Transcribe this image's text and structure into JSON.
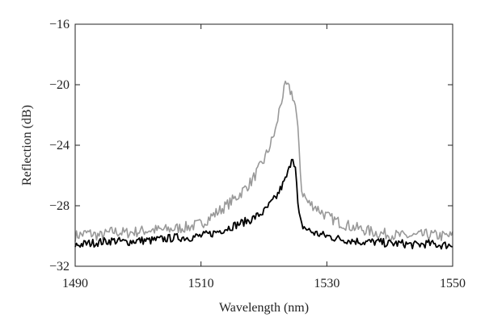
{
  "chart_data": {
    "type": "line",
    "title": "",
    "xlabel": "Wavelength (nm)",
    "ylabel": "Reflection (dB)",
    "xlim": [
      1490,
      1550
    ],
    "ylim": [
      -32,
      -16
    ],
    "xticks": [
      1490,
      1510,
      1530,
      1550
    ],
    "xtick_labels": [
      "1490",
      "1510",
      "1530",
      "1550"
    ],
    "yticks": [
      -32,
      -28,
      -24,
      -20,
      -16
    ],
    "ytick_labels": [
      "−32",
      "−28",
      "−24",
      "−20",
      "−16"
    ],
    "grid": false,
    "legend": "none",
    "series": [
      {
        "color": "#999999",
        "x": [
          1490,
          1492,
          1494,
          1496,
          1498,
          1500,
          1502,
          1504,
          1506,
          1508,
          1510,
          1512,
          1514,
          1516,
          1518,
          1520,
          1521,
          1522,
          1522.5,
          1523,
          1523.5,
          1524,
          1524.5,
          1525,
          1525.5,
          1526,
          1527,
          1528,
          1530,
          1532,
          1534,
          1536,
          1538,
          1540,
          1542,
          1544,
          1546,
          1548,
          1550
        ],
        "values": [
          -30.0,
          -29.8,
          -30.0,
          -29.7,
          -29.8,
          -29.7,
          -29.6,
          -29.6,
          -29.5,
          -29.4,
          -29.2,
          -28.6,
          -28.0,
          -27.3,
          -26.4,
          -25.0,
          -24.0,
          -22.8,
          -21.5,
          -20.7,
          -20.0,
          -20.3,
          -20.6,
          -21.4,
          -23.5,
          -27.0,
          -27.8,
          -28.0,
          -28.7,
          -29.1,
          -29.4,
          -29.6,
          -29.8,
          -29.9,
          -30.0,
          -30.0,
          -29.9,
          -30.0,
          -30.0
        ]
      },
      {
        "color": "#000000",
        "x": [
          1490,
          1492,
          1494,
          1496,
          1498,
          1500,
          1502,
          1504,
          1506,
          1508,
          1510,
          1512,
          1514,
          1516,
          1518,
          1520,
          1521,
          1522,
          1522.5,
          1523,
          1523.5,
          1524,
          1524.5,
          1525,
          1525.5,
          1526,
          1527,
          1528,
          1530,
          1532,
          1534,
          1536,
          1538,
          1540,
          1542,
          1544,
          1546,
          1548,
          1550
        ],
        "values": [
          -30.6,
          -30.5,
          -30.4,
          -30.3,
          -30.4,
          -30.3,
          -30.3,
          -30.2,
          -30.1,
          -30.1,
          -30.0,
          -29.8,
          -29.5,
          -29.2,
          -28.9,
          -28.4,
          -27.9,
          -27.4,
          -27.0,
          -26.6,
          -26.2,
          -25.6,
          -24.6,
          -25.5,
          -28.5,
          -29.3,
          -29.6,
          -29.8,
          -30.0,
          -30.2,
          -30.3,
          -30.4,
          -30.4,
          -30.5,
          -30.5,
          -30.6,
          -30.5,
          -30.6,
          -30.6
        ]
      }
    ]
  }
}
